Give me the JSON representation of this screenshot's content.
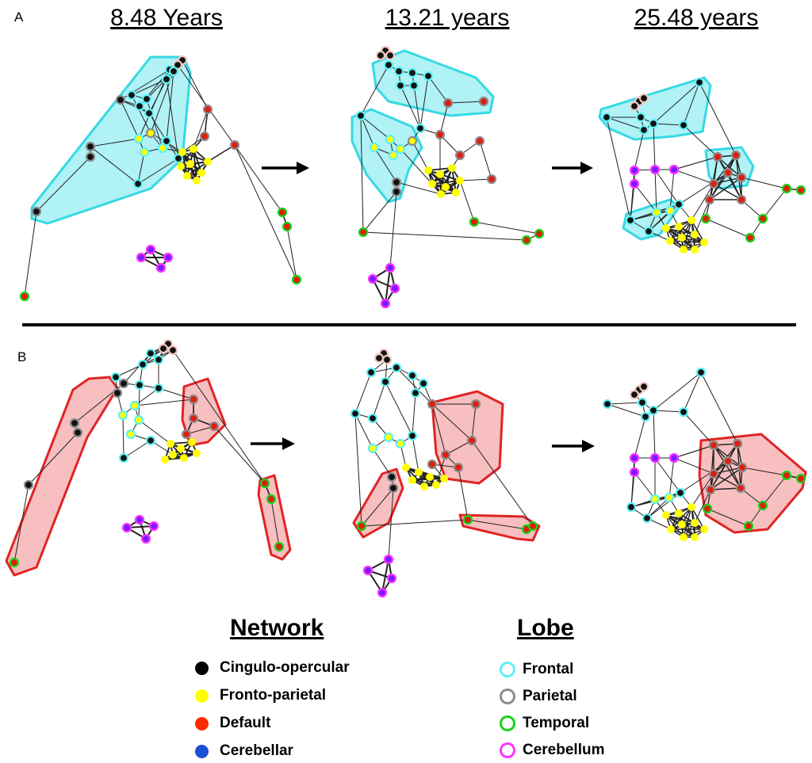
{
  "panels": {
    "A": "A",
    "B": "B"
  },
  "ages": {
    "t1": "8.48 Years",
    "t2": "13.21 years",
    "t3": "25.48 years"
  },
  "legend": {
    "network_title": "Network",
    "lobe_title": "Lobe",
    "network_items": [
      {
        "label": "Cingulo-opercular",
        "color": "#000000"
      },
      {
        "label": "Fronto-parietal",
        "color": "#ffff00"
      },
      {
        "label": "Default",
        "color": "#ff2a00"
      },
      {
        "label": "Cerebellar",
        "color": "#1a4fd6"
      }
    ],
    "lobe_items": [
      {
        "label": "Frontal",
        "color": "#5ff2f5"
      },
      {
        "label": "Parietal",
        "color": "#8c8c8c"
      },
      {
        "label": "Temporal",
        "color": "#18d418"
      },
      {
        "label": "Cerebellum",
        "color": "#ff33ff"
      }
    ]
  },
  "colors": {
    "cyan_region": "#6fe8ee",
    "red_region": "#f08a8a"
  }
}
